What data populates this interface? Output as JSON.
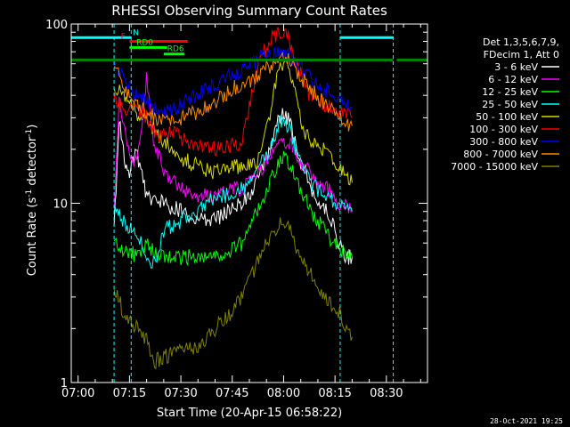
{
  "chart_data": {
    "type": "line",
    "title": "RHESSI Observing Summary Count Rates",
    "xlabel": "Start Time (20-Apr-15 06:58:22)",
    "ylabel_main": "Count Rate (s",
    "ylabel_sup": "-1",
    "ylabel_mid": " detector",
    "ylabel_end": ")",
    "yscale": "log",
    "ylim": [
      1,
      100
    ],
    "xlim_min": [
      -2,
      102
    ],
    "x_ticks": [
      {
        "min": 0,
        "label": "07:00"
      },
      {
        "min": 15,
        "label": "07:15"
      },
      {
        "min": 30,
        "label": "07:30"
      },
      {
        "min": 45,
        "label": "07:45"
      },
      {
        "min": 60,
        "label": "08:00"
      },
      {
        "min": 75,
        "label": "08:15"
      },
      {
        "min": 90,
        "label": "08:30"
      }
    ],
    "y_ticks": [
      {
        "value": 1,
        "label": "1"
      },
      {
        "value": 10,
        "label": "10"
      },
      {
        "value": 100,
        "label": "100"
      }
    ],
    "legend_header": [
      "Det 1,3,5,6,7,9,",
      "FDecim 1, Att 0"
    ],
    "legend_placement": "right",
    "series": [
      {
        "name": "3 - 6 keV",
        "color": "#ffffff",
        "points": [
          [
            10.5,
            7
          ],
          [
            12,
            30
          ],
          [
            13.5,
            18
          ],
          [
            15,
            14
          ],
          [
            17,
            20
          ],
          [
            20,
            11
          ],
          [
            25,
            10
          ],
          [
            30,
            9
          ],
          [
            35,
            8
          ],
          [
            40,
            8
          ],
          [
            45,
            9.5
          ],
          [
            47,
            10
          ],
          [
            50,
            11
          ],
          [
            55,
            17
          ],
          [
            58,
            28
          ],
          [
            60,
            32
          ],
          [
            62,
            28
          ],
          [
            65,
            17
          ],
          [
            70,
            10
          ],
          [
            73,
            9
          ],
          [
            76,
            6
          ],
          [
            78,
            5
          ],
          [
            80,
            5
          ]
        ]
      },
      {
        "name": "6 - 12 keV",
        "color": "#ff00ff",
        "points": [
          [
            10.5,
            9
          ],
          [
            12,
            38
          ],
          [
            14,
            22
          ],
          [
            16,
            17
          ],
          [
            18,
            20
          ],
          [
            20,
            50
          ],
          [
            22,
            23
          ],
          [
            25,
            15
          ],
          [
            30,
            12
          ],
          [
            35,
            11
          ],
          [
            40,
            11
          ],
          [
            45,
            12
          ],
          [
            48,
            12
          ],
          [
            50,
            13
          ],
          [
            54,
            16
          ],
          [
            58,
            21
          ],
          [
            60,
            23
          ],
          [
            62,
            21
          ],
          [
            66,
            16
          ],
          [
            70,
            13
          ],
          [
            73,
            12
          ],
          [
            76,
            10
          ],
          [
            80,
            9
          ]
        ]
      },
      {
        "name": "12 - 25 keV",
        "color": "#00ff00",
        "points": [
          [
            10.5,
            6
          ],
          [
            14,
            5.5
          ],
          [
            18,
            5
          ],
          [
            20,
            6
          ],
          [
            24,
            5
          ],
          [
            30,
            5
          ],
          [
            35,
            5
          ],
          [
            40,
            5
          ],
          [
            45,
            5.5
          ],
          [
            48,
            6
          ],
          [
            52,
            9
          ],
          [
            56,
            13
          ],
          [
            58,
            16
          ],
          [
            60,
            18
          ],
          [
            62,
            16
          ],
          [
            64,
            13
          ],
          [
            68,
            9
          ],
          [
            72,
            7
          ],
          [
            76,
            5.5
          ],
          [
            80,
            5
          ]
        ]
      },
      {
        "name": "25 - 50 keV",
        "color": "#00ffff",
        "points": [
          [
            10.5,
            10
          ],
          [
            13,
            8
          ],
          [
            16,
            7
          ],
          [
            19,
            6
          ],
          [
            21,
            4.5
          ],
          [
            23,
            5
          ],
          [
            25,
            7
          ],
          [
            30,
            8
          ],
          [
            35,
            9
          ],
          [
            40,
            11
          ],
          [
            45,
            11
          ],
          [
            48,
            12
          ],
          [
            52,
            15
          ],
          [
            56,
            20
          ],
          [
            58,
            26
          ],
          [
            60,
            30
          ],
          [
            62,
            25
          ],
          [
            64,
            18
          ],
          [
            68,
            13
          ],
          [
            72,
            11
          ],
          [
            76,
            10
          ],
          [
            80,
            9
          ]
        ]
      },
      {
        "name": "50 - 100 keV",
        "color": "#d8d800",
        "points": [
          [
            10.5,
            45
          ],
          [
            14,
            40
          ],
          [
            18,
            30
          ],
          [
            21,
            28
          ],
          [
            25,
            22
          ],
          [
            30,
            18
          ],
          [
            35,
            16
          ],
          [
            40,
            15
          ],
          [
            45,
            16
          ],
          [
            48,
            16
          ],
          [
            52,
            17
          ],
          [
            56,
            32
          ],
          [
            58,
            50
          ],
          [
            60,
            62
          ],
          [
            62,
            55
          ],
          [
            65,
            28
          ],
          [
            68,
            22
          ],
          [
            72,
            20
          ],
          [
            76,
            16
          ],
          [
            80,
            13
          ]
        ]
      },
      {
        "name": "100 - 300 keV",
        "color": "#ff0000",
        "points": [
          [
            10.5,
            40
          ],
          [
            12,
            36
          ],
          [
            14,
            32
          ],
          [
            17,
            35
          ],
          [
            20,
            30
          ],
          [
            23,
            24
          ],
          [
            27,
            25
          ],
          [
            32,
            22
          ],
          [
            38,
            20
          ],
          [
            44,
            21
          ],
          [
            48,
            22
          ],
          [
            50,
            35
          ],
          [
            53,
            65
          ],
          [
            57,
            85
          ],
          [
            59,
            92
          ],
          [
            61,
            88
          ],
          [
            64,
            60
          ],
          [
            67,
            42
          ],
          [
            70,
            38
          ],
          [
            73,
            35
          ],
          [
            76,
            32
          ],
          [
            80,
            30
          ]
        ]
      },
      {
        "name": "300 - 800 keV",
        "color": "#0000ff",
        "points": [
          [
            10.5,
            62
          ],
          [
            13,
            50
          ],
          [
            16,
            42
          ],
          [
            20,
            36
          ],
          [
            24,
            32
          ],
          [
            28,
            34
          ],
          [
            33,
            38
          ],
          [
            38,
            44
          ],
          [
            43,
            50
          ],
          [
            47,
            52
          ],
          [
            50,
            60
          ],
          [
            54,
            66
          ],
          [
            58,
            68
          ],
          [
            60,
            70
          ],
          [
            62,
            66
          ],
          [
            66,
            55
          ],
          [
            70,
            46
          ],
          [
            73,
            42
          ],
          [
            76,
            38
          ],
          [
            80,
            34
          ]
        ]
      },
      {
        "name": "800 - 7000 keV",
        "color": "#ff8800",
        "points": [
          [
            10.5,
            60
          ],
          [
            13,
            44
          ],
          [
            16,
            36
          ],
          [
            20,
            32
          ],
          [
            24,
            29
          ],
          [
            28,
            29
          ],
          [
            32,
            31
          ],
          [
            36,
            33
          ],
          [
            40,
            37
          ],
          [
            44,
            42
          ],
          [
            47,
            46
          ],
          [
            50,
            48
          ],
          [
            54,
            55
          ],
          [
            58,
            62
          ],
          [
            60,
            64
          ],
          [
            62,
            61
          ],
          [
            66,
            48
          ],
          [
            70,
            39
          ],
          [
            73,
            35
          ],
          [
            76,
            31
          ],
          [
            80,
            27
          ]
        ]
      },
      {
        "name": "7000 - 15000 keV",
        "color": "#808000",
        "points": [
          [
            10.5,
            3.5
          ],
          [
            13,
            2.5
          ],
          [
            17,
            2
          ],
          [
            20,
            1.7
          ],
          [
            22,
            1.3
          ],
          [
            25,
            1.4
          ],
          [
            30,
            1.5
          ],
          [
            35,
            1.6
          ],
          [
            40,
            2
          ],
          [
            45,
            2.5
          ],
          [
            48,
            3
          ],
          [
            52,
            4.5
          ],
          [
            56,
            6.5
          ],
          [
            58,
            7.5
          ],
          [
            60,
            8
          ],
          [
            62,
            7
          ],
          [
            65,
            5
          ],
          [
            68,
            4
          ],
          [
            72,
            3
          ],
          [
            76,
            2.5
          ],
          [
            80,
            1.8
          ]
        ]
      }
    ],
    "bars": [
      {
        "label": "N",
        "color": "#00ffff",
        "y": 84,
        "from": -2,
        "to": 15.5,
        "label_at": 16
      },
      {
        "label": "",
        "color": "#00ffff",
        "y": 84,
        "from": 76.5,
        "to": 92
      },
      {
        "label": "F",
        "color": "#ff0000",
        "y": 80,
        "from": 15,
        "to": 32,
        "label_at": 12.5
      },
      {
        "label": "RD0",
        "color": "#00ff00",
        "y": 74,
        "from": 15,
        "to": 26,
        "label_at": 17
      },
      {
        "label": "RD6",
        "color": "#00ff00",
        "y": 68,
        "from": 25,
        "to": 31,
        "label_at": 26
      },
      {
        "label": "",
        "color": "#008800",
        "y": 63,
        "from": -2,
        "to": 92
      },
      {
        "label": "",
        "color": "#008800",
        "y": 63,
        "from": 93,
        "to": 102
      }
    ],
    "vlines": [
      10.5,
      15.5,
      76.5,
      92
    ],
    "timestamp": "28-Oct-2021 19:25"
  }
}
